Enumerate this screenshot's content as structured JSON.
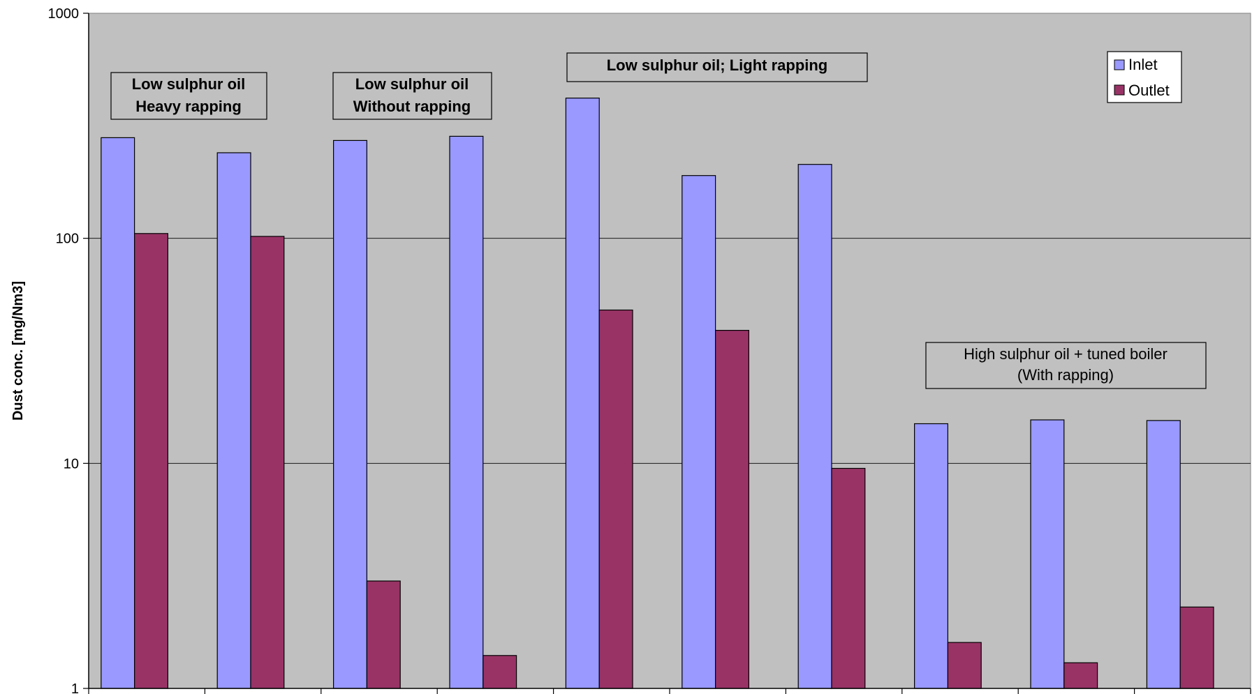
{
  "chart_data": {
    "type": "bar",
    "yscale": "log",
    "ylim": [
      1,
      1000
    ],
    "yticks": [
      "1",
      "10",
      "100",
      "1000"
    ],
    "ylabel": "Dust conc. [mg/Nm3]",
    "xlabel": "",
    "categories": [
      "",
      "",
      "",
      "",
      "",
      "",
      "",
      "",
      "",
      ""
    ],
    "grid": true,
    "legend_position": "top-right",
    "series": [
      {
        "name": "Inlet",
        "color": "#9999ff",
        "values": [
          280,
          240,
          272,
          284,
          420,
          190,
          213,
          15,
          15.6,
          15.5
        ]
      },
      {
        "name": "Outlet",
        "color": "#993366",
        "values": [
          105,
          102,
          3,
          1.4,
          48,
          39,
          9.5,
          1.6,
          1.3,
          2.3
        ]
      }
    ],
    "annotations": [
      {
        "lines": [
          "Low sulphur oil",
          "Heavy rapping"
        ],
        "bold": true
      },
      {
        "lines": [
          "Low sulphur oil",
          "Without rapping"
        ],
        "bold": true
      },
      {
        "lines": [
          "Low sulphur oil; Light rapping"
        ],
        "bold": true
      },
      {
        "lines": [
          "High sulphur oil + tuned boiler",
          "(With rapping)"
        ],
        "bold": false
      }
    ]
  }
}
